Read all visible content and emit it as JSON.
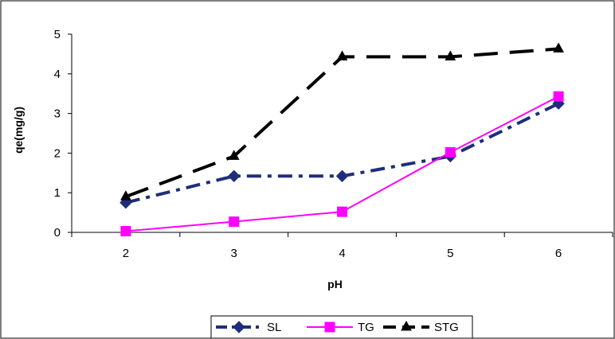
{
  "chart_data": {
    "type": "line",
    "title": "",
    "xlabel": "pH",
    "ylabel": "qe(mg/g)",
    "categories": [
      "2",
      "3",
      "4",
      "5",
      "6"
    ],
    "ylim": [
      0,
      5
    ],
    "yticks": [
      "0",
      "1",
      "2",
      "3",
      "4",
      "5"
    ],
    "grid": false,
    "legend_position": "bottom",
    "series": [
      {
        "name": "SL",
        "values": [
          0.75,
          1.42,
          1.42,
          1.92,
          3.25
        ],
        "color": "#1F2E7A",
        "marker": "diamond",
        "line": "dash-dot"
      },
      {
        "name": "TG",
        "values": [
          0.03,
          0.27,
          0.52,
          2.02,
          3.43
        ],
        "color": "#FF00FF",
        "marker": "square",
        "line": "solid"
      },
      {
        "name": "STG",
        "values": [
          0.9,
          1.92,
          4.43,
          4.43,
          4.63
        ],
        "color": "#000000",
        "marker": "triangle",
        "line": "long-dash"
      }
    ]
  }
}
